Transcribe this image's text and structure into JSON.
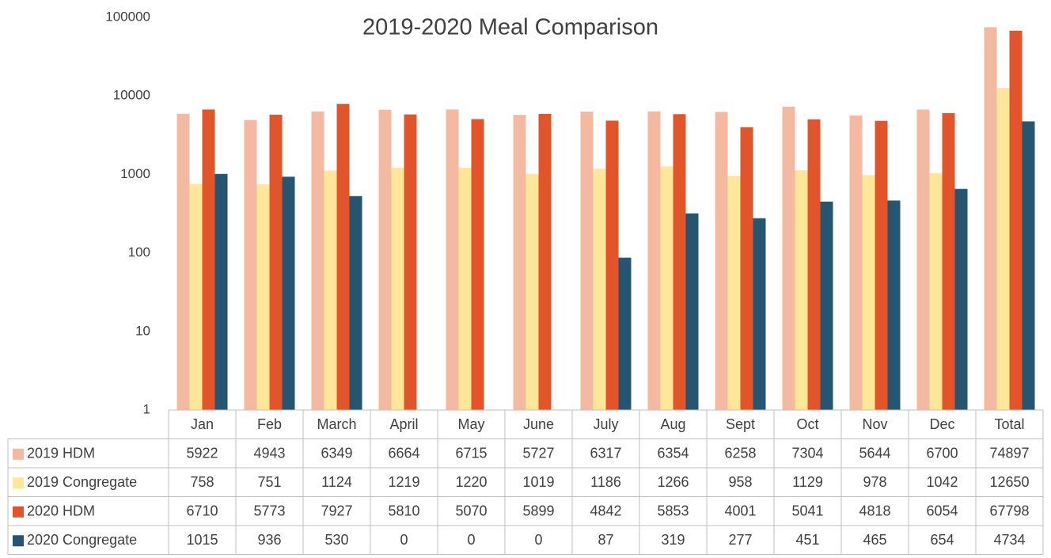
{
  "chart_data": {
    "type": "bar",
    "title": "2019-2020 Meal Comparison",
    "categories": [
      "Jan",
      "Feb",
      "March",
      "April",
      "May",
      "June",
      "July",
      "Aug",
      "Sept",
      "Oct",
      "Nov",
      "Dec",
      "Total"
    ],
    "series": [
      {
        "name": "2019 HDM",
        "color": "#f4b9a1",
        "values": [
          5922,
          4943,
          6349,
          6664,
          6715,
          5727,
          6317,
          6354,
          6258,
          7304,
          5644,
          6700,
          74897
        ]
      },
      {
        "name": "2019 Congregate",
        "color": "#ffe699",
        "values": [
          758,
          751,
          1124,
          1219,
          1220,
          1019,
          1186,
          1266,
          958,
          1129,
          978,
          1042,
          12650
        ]
      },
      {
        "name": "2020 HDM",
        "color": "#e2542a",
        "values": [
          6710,
          5773,
          7927,
          5810,
          5070,
          5899,
          4842,
          5853,
          4001,
          5041,
          4818,
          6054,
          67798
        ]
      },
      {
        "name": "2020 Congregate",
        "color": "#255570",
        "values": [
          1015,
          936,
          530,
          0,
          0,
          0,
          87,
          319,
          277,
          451,
          465,
          654,
          4734
        ]
      }
    ],
    "ylim": [
      1,
      100000
    ],
    "yticks": [
      1,
      10,
      100,
      1000,
      10000,
      100000
    ],
    "log_scale": true,
    "grid": false,
    "data_table": true
  }
}
